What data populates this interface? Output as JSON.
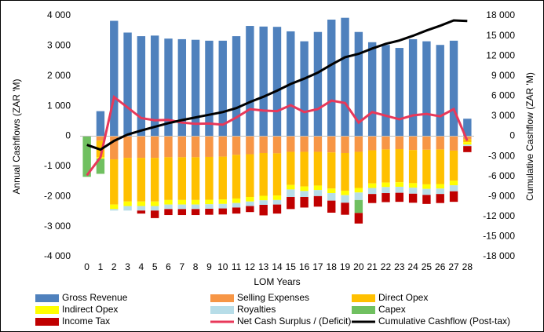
{
  "chart_data": {
    "type": "bar",
    "x_label": "LOM Years",
    "y_label": "Annual Cashflows (ZAR 'M)",
    "y2_label": "Cumulative Cashflow (ZAR 'M)",
    "categories": [
      "0",
      "1",
      "2",
      "3",
      "4",
      "5",
      "6",
      "7",
      "8",
      "9",
      "10",
      "11",
      "12",
      "13",
      "14",
      "15",
      "16",
      "17",
      "18",
      "19",
      "20",
      "21",
      "22",
      "23",
      "24",
      "25",
      "26",
      "27",
      "28"
    ],
    "ylim": [
      -4000,
      4000
    ],
    "yticks": [
      {
        "value": -4000,
        "label": "-4 000"
      },
      {
        "value": -3000,
        "label": "-3 000"
      },
      {
        "value": -2000,
        "label": "-2 000"
      },
      {
        "value": -1000,
        "label": "-1 000"
      },
      0,
      {
        "value": 1000,
        "label": "1 000"
      },
      {
        "value": 2000,
        "label": "2 000"
      },
      {
        "value": 3000,
        "label": "3 000"
      },
      {
        "value": 4000,
        "label": "4 000"
      }
    ],
    "y2lim": [
      -18000,
      18000
    ],
    "y2ticks": [
      {
        "value": -18000,
        "label": "-18 000"
      },
      {
        "value": -15000,
        "label": "-15 000"
      },
      {
        "value": -12000,
        "label": "-12 000"
      },
      {
        "value": -9000,
        "label": "-9 000"
      },
      {
        "value": -6000,
        "label": "-6 000"
      },
      {
        "value": -3000,
        "label": "-3 000"
      },
      0,
      {
        "value": 3000,
        "label": "3 000"
      },
      {
        "value": 6000,
        "label": "6 000"
      },
      {
        "value": 9000,
        "label": "9 000"
      },
      {
        "value": 12000,
        "label": "12 000"
      },
      {
        "value": 15000,
        "label": "15 000"
      },
      {
        "value": 18000,
        "label": "18 000"
      }
    ],
    "grid": false,
    "legend": "bottom",
    "series": [
      {
        "name": "Gross Revenue",
        "type": "bar",
        "color": "#4f81bd",
        "values": [
          0,
          830,
          3830,
          3440,
          3320,
          3340,
          3240,
          3220,
          3200,
          3170,
          3170,
          3320,
          3660,
          3640,
          3630,
          3480,
          3150,
          3460,
          3870,
          3930,
          3460,
          3120,
          3030,
          2930,
          3220,
          3150,
          3030,
          3170,
          580
        ]
      },
      {
        "name": "Selling Expenses",
        "type": "bar",
        "color": "#f79646",
        "values": [
          0,
          -150,
          -770,
          -720,
          -720,
          -720,
          -700,
          -700,
          -700,
          -690,
          -680,
          -620,
          -600,
          -560,
          -570,
          -520,
          -520,
          -520,
          -540,
          -560,
          -520,
          -470,
          -440,
          -430,
          -460,
          -450,
          -440,
          -480,
          -100
        ]
      },
      {
        "name": "Direct Opex",
        "type": "bar",
        "color": "#ffc000",
        "values": [
          0,
          -550,
          -1500,
          -1450,
          -1450,
          -1450,
          -1420,
          -1420,
          -1420,
          -1420,
          -1420,
          -1450,
          -1420,
          -1420,
          -1400,
          -1100,
          -1150,
          -1120,
          -1200,
          -1250,
          -1200,
          -1100,
          -1100,
          -1100,
          -1100,
          -1150,
          -1150,
          -1000,
          -100
        ]
      },
      {
        "name": "Indirect Opex",
        "type": "bar",
        "color": "#ffff00",
        "values": [
          0,
          -50,
          -150,
          -150,
          -150,
          -150,
          -150,
          -150,
          -150,
          -150,
          -150,
          -150,
          -150,
          -150,
          -150,
          -150,
          -150,
          -150,
          -150,
          -150,
          -150,
          -150,
          -150,
          -150,
          -150,
          -150,
          -150,
          -150,
          -80
        ]
      },
      {
        "name": "Royalties",
        "type": "bar",
        "color": "#b7dde8",
        "values": [
          0,
          0,
          -50,
          -150,
          -150,
          -150,
          -150,
          -150,
          -150,
          -150,
          -150,
          -150,
          -150,
          -150,
          -150,
          -250,
          -200,
          -200,
          -250,
          -250,
          -250,
          -200,
          -200,
          -200,
          -200,
          -200,
          -180,
          -200,
          -50
        ]
      },
      {
        "name": "Capex",
        "type": "bar",
        "color": "#70c060",
        "values": [
          -1350,
          -500,
          0,
          0,
          0,
          0,
          0,
          0,
          0,
          0,
          0,
          0,
          0,
          0,
          0,
          0,
          0,
          0,
          0,
          0,
          -430,
          0,
          0,
          0,
          0,
          0,
          0,
          0,
          0
        ]
      },
      {
        "name": "Income Tax",
        "type": "bar",
        "color": "#c00000",
        "values": [
          0,
          0,
          0,
          0,
          -100,
          -250,
          -200,
          -200,
          -200,
          -200,
          -200,
          -200,
          -200,
          -350,
          -300,
          -400,
          -350,
          -350,
          -400,
          -400,
          -350,
          -300,
          -300,
          -300,
          -300,
          -300,
          -300,
          -350,
          -200
        ]
      },
      {
        "name": "Net Cash Surplus / (Deficit)",
        "type": "line",
        "color": "#e8385a",
        "values": [
          -1300,
          -700,
          1300,
          950,
          600,
          530,
          540,
          450,
          410,
          420,
          380,
          620,
          900,
          850,
          830,
          1030,
          800,
          900,
          1180,
          1100,
          450,
          800,
          680,
          560,
          690,
          740,
          660,
          900,
          -150
        ]
      },
      {
        "name": "Cumulative Cashflow (Post-tax)",
        "type": "line",
        "axis": "y2",
        "color": "#000000",
        "values": [
          -1300,
          -2000,
          -700,
          250,
          850,
          1400,
          1950,
          2400,
          2800,
          3200,
          3600,
          4200,
          5100,
          5900,
          6800,
          7800,
          8600,
          9500,
          10700,
          11800,
          12300,
          13100,
          13800,
          14300,
          15000,
          15800,
          16500,
          17300,
          17200
        ]
      }
    ]
  }
}
